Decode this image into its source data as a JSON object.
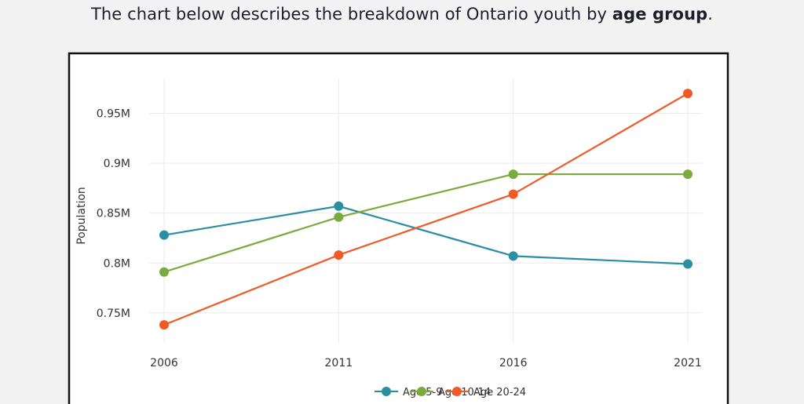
{
  "intro": {
    "prefix": "The chart below describes the breakdown of Ontario youth by ",
    "bold": "age group",
    "suffix": "."
  },
  "chart_data": {
    "type": "line",
    "x": [
      "2006",
      "2011",
      "2016",
      "2021"
    ],
    "ylabel": "Population",
    "ylim": [
      0.72,
      0.985
    ],
    "yticks": [
      0.75,
      0.8,
      0.85,
      0.9,
      0.95
    ],
    "ytick_labels": [
      "0.75M",
      "0.8M",
      "0.85M",
      "0.9M",
      "0.95M"
    ],
    "grid": true,
    "legend_placement": "bottom",
    "series": [
      {
        "name": "Age 5-9",
        "color": "#2a8fa3",
        "values": [
          0.828,
          0.857,
          0.807,
          0.799
        ]
      },
      {
        "name": "Age 10-14",
        "color": "#7aab3c",
        "values": [
          0.791,
          0.846,
          0.889,
          0.889
        ]
      },
      {
        "name": "Age 20-24",
        "color": "#ef5a27",
        "values": [
          0.738,
          0.808,
          0.869,
          0.97
        ]
      }
    ]
  }
}
